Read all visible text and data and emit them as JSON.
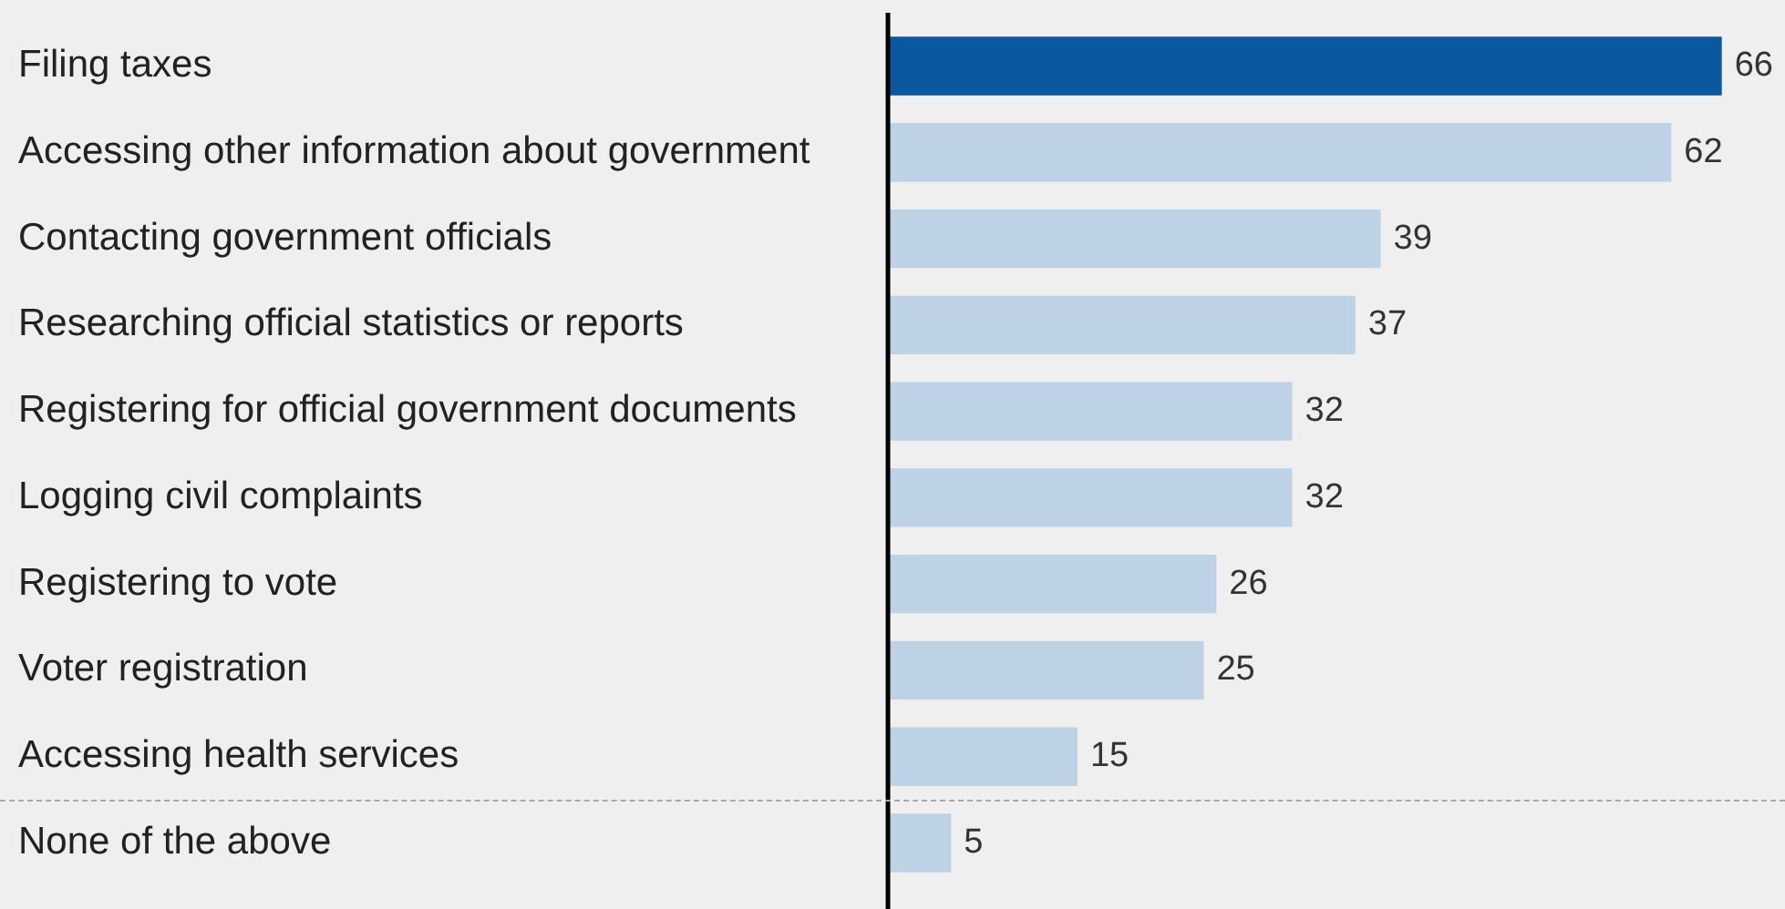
{
  "chart_data": {
    "type": "bar",
    "orientation": "horizontal",
    "categories": [
      "Filing taxes",
      "Accessing other information about government",
      "Contacting government officials",
      "Researching official statistics or reports",
      "Registering for official government documents",
      "Logging civil complaints",
      "Registering to vote",
      "Voter registration",
      "Accessing health services",
      "None of the above"
    ],
    "values": [
      66,
      62,
      39,
      37,
      32,
      32,
      26,
      25,
      15,
      5
    ],
    "colors": [
      "#0b57a0",
      "#bed2e6",
      "#bed2e6",
      "#bed2e6",
      "#bed2e6",
      "#bed2e6",
      "#bed2e6",
      "#bed2e6",
      "#bed2e6",
      "#bed2e6"
    ],
    "xlim": [
      0,
      71
    ],
    "data_labels": true,
    "tick_labels": "y"
  }
}
